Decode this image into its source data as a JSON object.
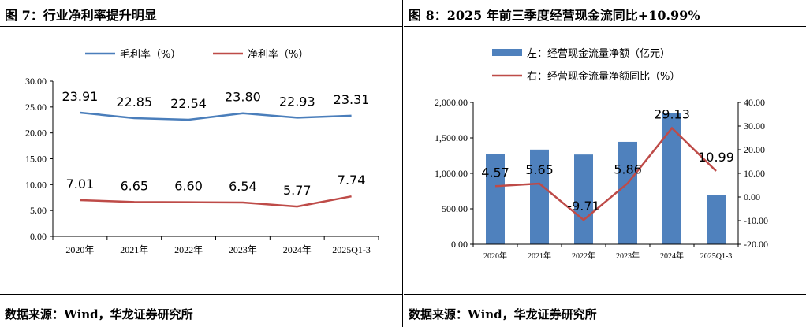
{
  "left": {
    "title": "图 7：行业净利率提升明显",
    "source": "数据来源：Wind，华龙证券研究所"
  },
  "right": {
    "title": "图 8：2025 年前三季度经营现金流同比+10.99%",
    "source": "数据来源：Wind，华龙证券研究所"
  },
  "chart_data": [
    {
      "type": "line",
      "categories": [
        "2020年",
        "2021年",
        "2022年",
        "2023年",
        "2024年",
        "2025Q1-3"
      ],
      "series": [
        {
          "name": "毛利率（%）",
          "color": "#4A7EBB",
          "values": [
            23.91,
            22.85,
            22.54,
            23.8,
            22.93,
            23.31
          ],
          "labels": [
            "23.91",
            "22.85",
            "22.54",
            "23.80",
            "22.93",
            "23.31"
          ]
        },
        {
          "name": "净利率（%）",
          "color": "#BE4B48",
          "values": [
            7.01,
            6.65,
            6.6,
            6.54,
            5.77,
            7.74
          ],
          "labels": [
            "7.01",
            "6.65",
            "6.60",
            "6.54",
            "5.77",
            "7.74"
          ]
        }
      ],
      "ylim": [
        0,
        30
      ],
      "yticks": [
        "0.00",
        "5.00",
        "10.00",
        "15.00",
        "20.00",
        "25.00",
        "30.00"
      ],
      "legend_position": "top",
      "grid": false
    },
    {
      "type": "bar+line",
      "categories": [
        "2020年",
        "2021年",
        "2022年",
        "2023年",
        "2024年",
        "2025Q1-3"
      ],
      "series": [
        {
          "name": "左：经营现金流量净额（亿元）",
          "axis": "left",
          "kind": "bar",
          "color": "#4F81BD",
          "values": [
            1270,
            1335,
            1265,
            1445,
            1850,
            690
          ]
        },
        {
          "name": "右：经营现金流量净额同比（%）",
          "axis": "right",
          "kind": "line",
          "color": "#BE4B48",
          "values": [
            4.57,
            5.65,
            -9.71,
            5.86,
            29.13,
            10.99
          ],
          "labels": [
            "4.57",
            "5.65",
            "-9.71",
            "5.86",
            "29.13",
            "10.99"
          ]
        }
      ],
      "ylim_left": [
        0,
        2000
      ],
      "yticks_left": [
        "0.00",
        "500.00",
        "1,000.00",
        "1,500.00",
        "2,000.00"
      ],
      "ylim_right": [
        -20,
        40
      ],
      "yticks_right": [
        "-20.00",
        "-10.00",
        "0.00",
        "10.00",
        "20.00",
        "30.00",
        "40.00"
      ],
      "legend_position": "top",
      "grid": false
    }
  ]
}
